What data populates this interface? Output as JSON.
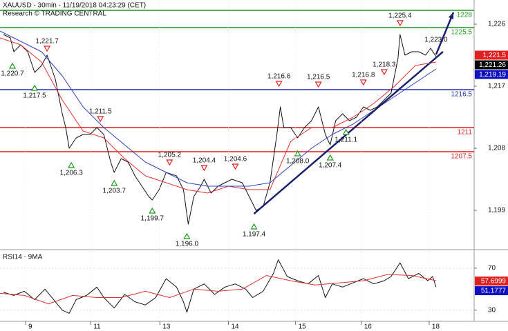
{
  "chart_data": [
    {
      "type": "line",
      "title": "XAUUSD - 30min - 11/19/2018 04:23:29 (CET)",
      "subtitle": "Research © TRADING CENTRAL",
      "xlim": [
        0,
        137
      ],
      "ylim": [
        1193.5,
        1229.5
      ],
      "yticks": [
        {
          "value": 1199,
          "label": "1,199"
        },
        {
          "value": 1208,
          "label": "1,208"
        },
        {
          "value": 1217,
          "label": "1,217"
        },
        {
          "value": 1226,
          "label": "1,226"
        }
      ],
      "series": [
        {
          "color": "#111111",
          "width": 1,
          "x": [
            1,
            3,
            4,
            6,
            8,
            10,
            12,
            13.6,
            16,
            18,
            19,
            20,
            22,
            24,
            26,
            28,
            30,
            32,
            33,
            35,
            37,
            39,
            41,
            43,
            44,
            46,
            48,
            51,
            53,
            54.4,
            56,
            58,
            59,
            61,
            63,
            65,
            67,
            70,
            72,
            74,
            76,
            78,
            80,
            81,
            82,
            84,
            86,
            88,
            90,
            92,
            94,
            95.4,
            97,
            99,
            101,
            103,
            105,
            107,
            109,
            111,
            113,
            115,
            115.6,
            117,
            119,
            121,
            123,
            124.4,
            126
          ],
          "values": [
            1224.5,
            1224,
            1222,
            1223,
            1222,
            1219,
            1220,
            1221.5,
            1218,
            1213,
            1211,
            1208,
            1209.5,
            1210,
            1210,
            1211,
            1210,
            1206,
            1204.5,
            1206.5,
            1206,
            1204,
            1202.5,
            1201,
            1200.5,
            1202,
            1204.5,
            1204,
            1202,
            1197,
            1201,
            1202.5,
            1203.5,
            1201.5,
            1202.5,
            1203,
            1203.5,
            1203,
            1201,
            1199,
            1199.5,
            1203,
            1210,
            1214,
            1211,
            1211,
            1209.5,
            1211,
            1212,
            1214,
            1210,
            1208.5,
            1212,
            1213,
            1212,
            1212.5,
            1214,
            1213.5,
            1214,
            1215,
            1216,
            1221,
            1224.5,
            1221.5,
            1222,
            1222,
            1221.5,
            1222.5,
            1221.3
          ]
        },
        {
          "color": "#e03030",
          "width": 1,
          "x": [
            0,
            6,
            12,
            18,
            24,
            30,
            36,
            42,
            48,
            54,
            60,
            66,
            72,
            78,
            84,
            90,
            96,
            102,
            108,
            114,
            120,
            126
          ],
          "values": [
            1224,
            1223,
            1220.5,
            1215,
            1210.5,
            1209.5,
            1206.5,
            1204,
            1203,
            1202,
            1201.5,
            1202.5,
            1202,
            1202,
            1209,
            1211,
            1211,
            1212.5,
            1214.5,
            1217,
            1220,
            1220.5
          ]
        },
        {
          "color": "#3040c0",
          "width": 1,
          "x": [
            0,
            6,
            12,
            18,
            24,
            30,
            36,
            42,
            48,
            54,
            60,
            66,
            72,
            78,
            84,
            90,
            96,
            102,
            108,
            114,
            120,
            126
          ],
          "values": [
            1225,
            1223.5,
            1222,
            1218.5,
            1214,
            1211,
            1208.5,
            1206,
            1204.5,
            1203,
            1202.5,
            1202.5,
            1202.5,
            1203,
            1205.5,
            1208,
            1210,
            1211.5,
            1213.5,
            1215.5,
            1217.5,
            1219.5
          ]
        },
        {
          "color": "#1a1f6e",
          "width": 2.5,
          "x": [
            73.4,
            128
          ],
          "values": [
            1198.5,
            1222
          ]
        },
        {
          "color": "#1a1f6e",
          "width": 2.5,
          "arrow": true,
          "x": [
            126,
            131
          ],
          "values": [
            1221.6,
            1227.7
          ]
        }
      ],
      "levels": [
        {
          "value": 1228,
          "color": "#1a9a1a"
        },
        {
          "value": 1225.5,
          "color": "#1a9a1a"
        },
        {
          "value": 1216.5,
          "color": "#2030b0"
        },
        {
          "value": 1211,
          "color": "#dd1f1f"
        },
        {
          "value": 1207.5,
          "color": "#dd1f1f"
        }
      ],
      "annotations": [
        {
          "x": 3.6,
          "value": 1220.7,
          "label": "1,220.7",
          "marker": "up"
        },
        {
          "x": 13.6,
          "value": 1221.7,
          "label": "1,221.7",
          "marker": "down"
        },
        {
          "x": 10,
          "value": 1217.5,
          "label": "1,217.5",
          "marker": "up"
        },
        {
          "x": 20.6,
          "value": 1206.3,
          "label": "1,206.3",
          "marker": "up"
        },
        {
          "x": 29,
          "value": 1211.5,
          "label": "1,211.5",
          "marker": "down"
        },
        {
          "x": 33,
          "value": 1203.7,
          "label": "1,203.7",
          "marker": "up"
        },
        {
          "x": 44,
          "value": 1199.7,
          "label": "1,199.7",
          "marker": "up"
        },
        {
          "x": 49,
          "value": 1205.2,
          "label": "1,205.2",
          "marker": "down"
        },
        {
          "x": 54,
          "value": 1196.0,
          "label": "1,196.0",
          "marker": "up"
        },
        {
          "x": 59,
          "value": 1204.4,
          "label": "1,204.4",
          "marker": "down"
        },
        {
          "x": 68,
          "value": 1204.6,
          "label": "1,204.6",
          "marker": "down"
        },
        {
          "x": 73.4,
          "value": 1197.4,
          "label": "1,197.4",
          "marker": "up"
        },
        {
          "x": 80.6,
          "value": 1216.6,
          "label": "1,216.6",
          "marker": "down"
        },
        {
          "x": 86,
          "value": 1208.0,
          "label": "1,208.0",
          "marker": "up"
        },
        {
          "x": 92,
          "value": 1216.5,
          "label": "1,216.5",
          "marker": "down"
        },
        {
          "x": 95.4,
          "value": 1207.4,
          "label": "1,207.4",
          "marker": "up"
        },
        {
          "x": 100,
          "value": 1211.1,
          "label": "1,211.1",
          "marker": "up"
        },
        {
          "x": 105,
          "value": 1216.8,
          "label": "1,216.8",
          "marker": "down"
        },
        {
          "x": 111,
          "value": 1218.3,
          "label": "1,218.3",
          "marker": "down"
        },
        {
          "x": 115.6,
          "value": 1225.4,
          "label": "1,225.4",
          "marker": "down"
        },
        {
          "x": 126,
          "value": 1223.0,
          "label": "1,223.0"
        }
      ],
      "price_tags": [
        {
          "value": 1221.5,
          "label": "1,221.5",
          "color": "#e02020"
        },
        {
          "value": 1221.26,
          "label": "1,221.26",
          "color": "#000000"
        },
        {
          "value": 1219.19,
          "label": "1,219.19",
          "color": "#1010c0"
        }
      ]
    },
    {
      "type": "line",
      "title": "RSI14 - 9MA",
      "xlim": [
        0,
        137
      ],
      "ylim": [
        20,
        85
      ],
      "yticks": [
        30,
        70
      ],
      "xticks": [
        {
          "value": 7.4,
          "label": "9"
        },
        {
          "value": 26.2,
          "label": "11"
        },
        {
          "value": 46.2,
          "label": "13"
        },
        {
          "value": 66,
          "label": "14"
        },
        {
          "value": 85.4,
          "label": "15"
        },
        {
          "value": 104.4,
          "label": "16"
        },
        {
          "value": 124,
          "label": "18"
        }
      ],
      "series": [
        {
          "color": "#111111",
          "width": 1,
          "x": [
            1,
            4,
            7,
            10,
            13,
            16,
            18,
            20,
            22,
            25,
            28,
            30,
            33,
            36,
            39,
            42,
            45,
            48,
            51,
            53,
            54,
            56,
            59,
            62,
            65,
            68,
            71,
            73,
            76,
            79,
            80.4,
            83,
            86,
            89,
            92,
            94,
            96,
            99,
            102,
            105,
            108,
            111,
            113,
            115.6,
            118,
            121,
            123.6,
            125,
            126
          ],
          "values": [
            47,
            44,
            48,
            40,
            50,
            38,
            30,
            27,
            40,
            44,
            52,
            42,
            32,
            45,
            38,
            35,
            42,
            60,
            52,
            38,
            28,
            50,
            55,
            45,
            52,
            55,
            50,
            42,
            48,
            65,
            78,
            62,
            58,
            55,
            63,
            42,
            55,
            52,
            56,
            60,
            55,
            58,
            62,
            75,
            60,
            65,
            58,
            62,
            52
          ]
        },
        {
          "color": "#e03030",
          "width": 1,
          "x": [
            0,
            7,
            14,
            21,
            28,
            35,
            42,
            49,
            56,
            63,
            70,
            77,
            84,
            91,
            98,
            105,
            112,
            119,
            126
          ],
          "values": [
            46,
            44,
            36,
            44,
            42,
            42,
            48,
            42,
            50,
            48,
            50,
            63,
            58,
            54,
            56,
            58,
            64,
            63,
            58
          ]
        }
      ],
      "price_tags": [
        {
          "value": 57.6999,
          "label": "57.6999",
          "color": "#e02020"
        },
        {
          "value": 51.1777,
          "label": "51.1777",
          "color": "#1010c0"
        }
      ]
    }
  ]
}
